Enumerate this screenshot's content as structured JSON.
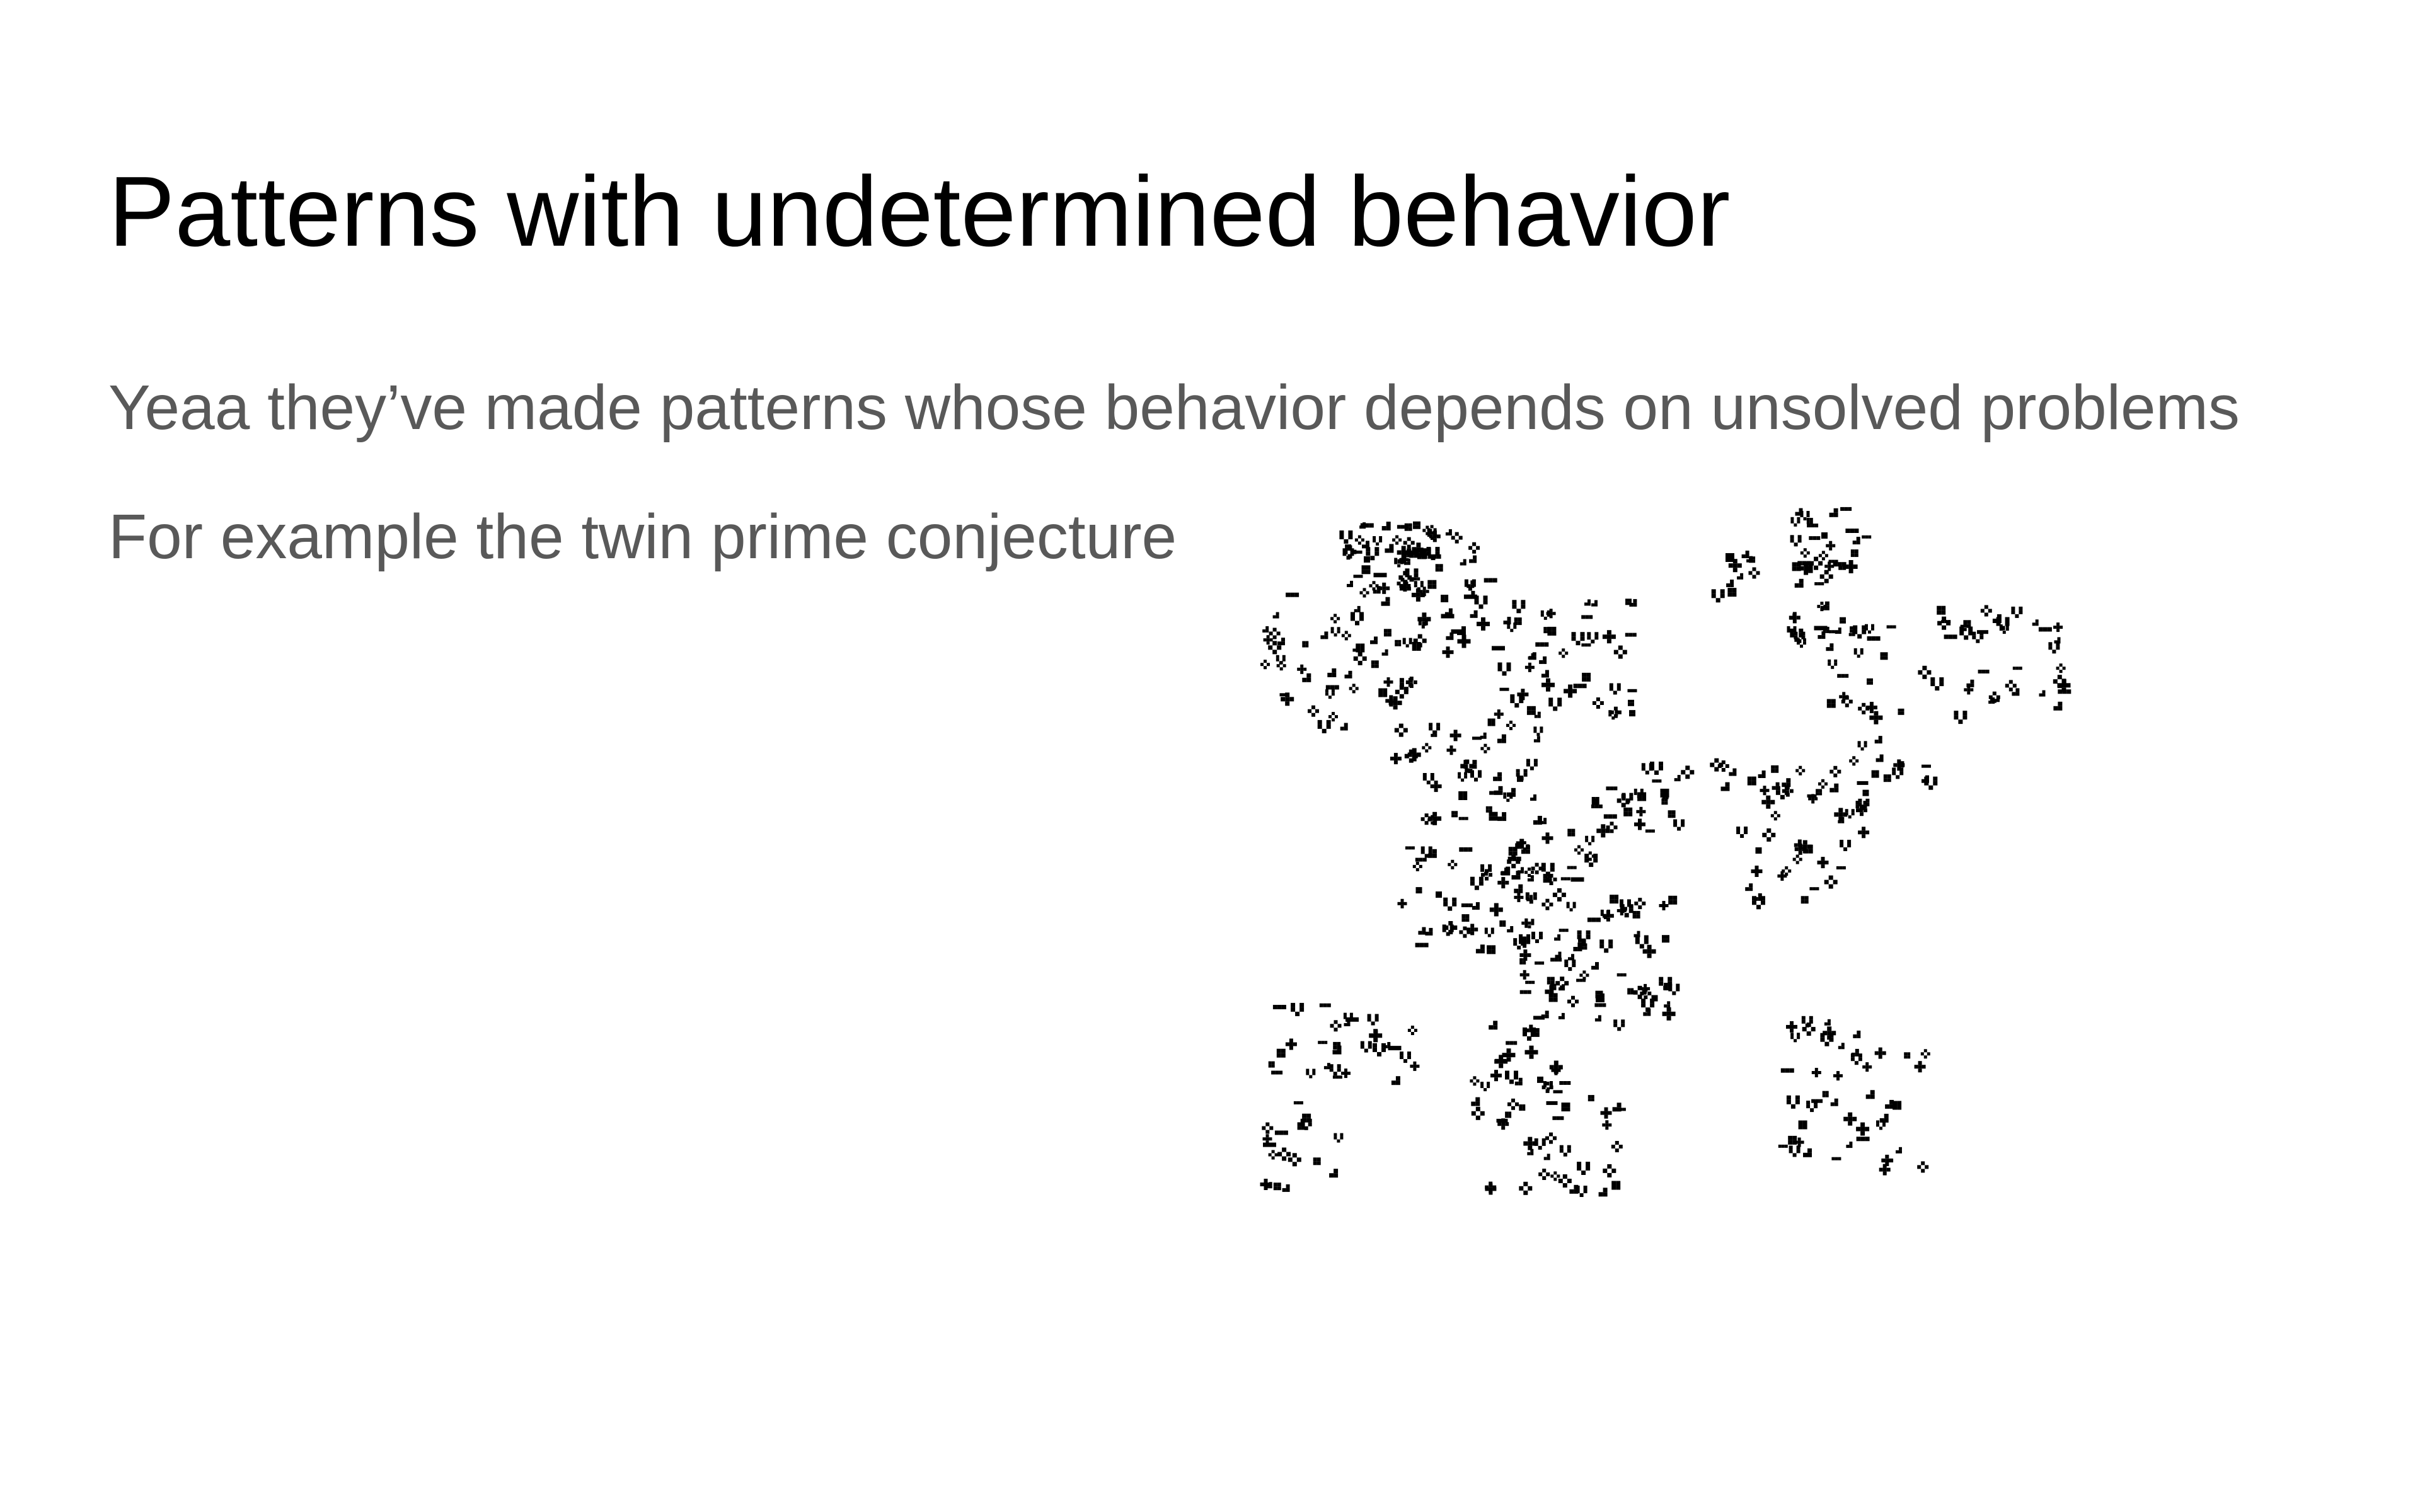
{
  "slide": {
    "title": "Patterns with undetermined behavior",
    "bullets": [
      "Yeaa they’ve made patterns whose behavior depends on unsolved problems",
      "For example the twin prime conjecture"
    ],
    "image": {
      "icon": "game-of-life-pattern-image",
      "color": "#000000"
    }
  },
  "colors": {
    "background": "#ffffff",
    "title": "#000000",
    "body": "#595959"
  }
}
